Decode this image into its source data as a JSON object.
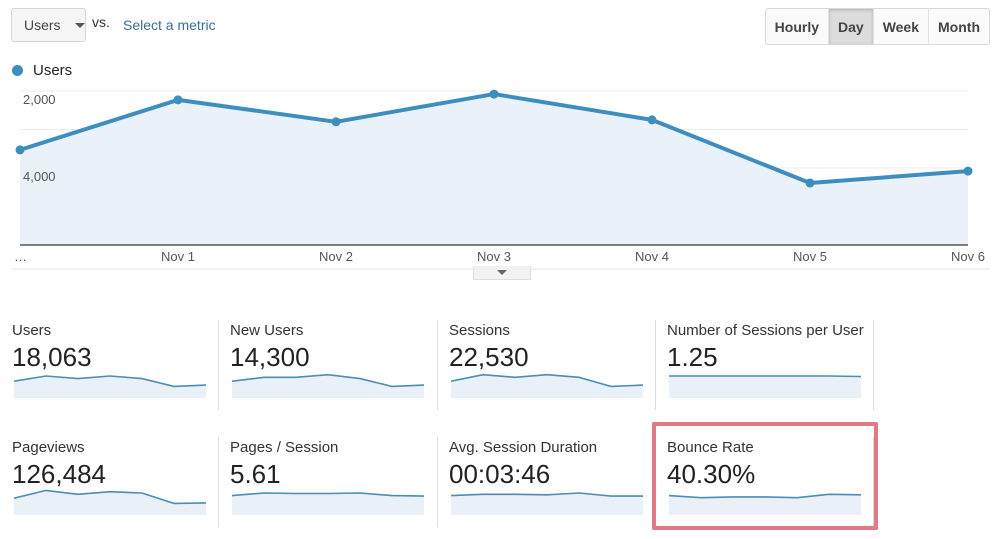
{
  "toolbar": {
    "metric_select": "Users",
    "vs_label": "vs.",
    "compare_link": "Select a metric",
    "granularity": [
      {
        "label": "Hourly",
        "active": false
      },
      {
        "label": "Day",
        "active": true
      },
      {
        "label": "Week",
        "active": false
      },
      {
        "label": "Month",
        "active": false
      }
    ]
  },
  "chart_data": {
    "type": "area",
    "legend": [
      "Users"
    ],
    "series": [
      {
        "name": "Users",
        "color": "#3d8ebf",
        "values": [
          2470,
          3770,
          3200,
          3920,
          3250,
          1610,
          1920
        ]
      }
    ],
    "x": [
      "…",
      "Nov 1",
      "Nov 2",
      "Nov 3",
      "Nov 4",
      "Nov 5",
      "Nov 6"
    ],
    "y_ticks": [
      "2,000",
      "4,000"
    ],
    "ylim": [
      0,
      4500
    ],
    "grid": true
  },
  "metrics": [
    {
      "label": "Users",
      "value": "18,063",
      "trend": [
        3,
        5,
        4,
        5,
        4,
        1,
        1.5
      ]
    },
    {
      "label": "New Users",
      "value": "14,300",
      "trend": [
        3,
        4.5,
        4.5,
        5.5,
        4,
        1,
        1.5
      ]
    },
    {
      "label": "Sessions",
      "value": "22,530",
      "trend": [
        3,
        5.5,
        4.5,
        5.5,
        4.5,
        1,
        1.5
      ]
    },
    {
      "label": "Number of Sessions per User",
      "value": "1.25",
      "trend": [
        5,
        5,
        5,
        5,
        5,
        5,
        4.8
      ]
    },
    {
      "label": "Pageviews",
      "value": "126,484",
      "trend": [
        3,
        6,
        4.5,
        5.5,
        5,
        1,
        1.2
      ]
    },
    {
      "label": "Pages / Session",
      "value": "5.61",
      "trend": [
        4,
        5,
        4.8,
        4.8,
        5,
        4,
        3.8
      ]
    },
    {
      "label": "Avg. Session Duration",
      "value": "00:03:46",
      "trend": [
        4,
        4.5,
        4.5,
        4.3,
        5,
        3.8,
        3.8
      ]
    },
    {
      "label": "Bounce Rate",
      "value": "40.30%",
      "trend": [
        4,
        3.2,
        3.5,
        3.5,
        3.2,
        4.5,
        4.3
      ],
      "highlighted": true
    }
  ],
  "highlight_color": "#e07a87"
}
